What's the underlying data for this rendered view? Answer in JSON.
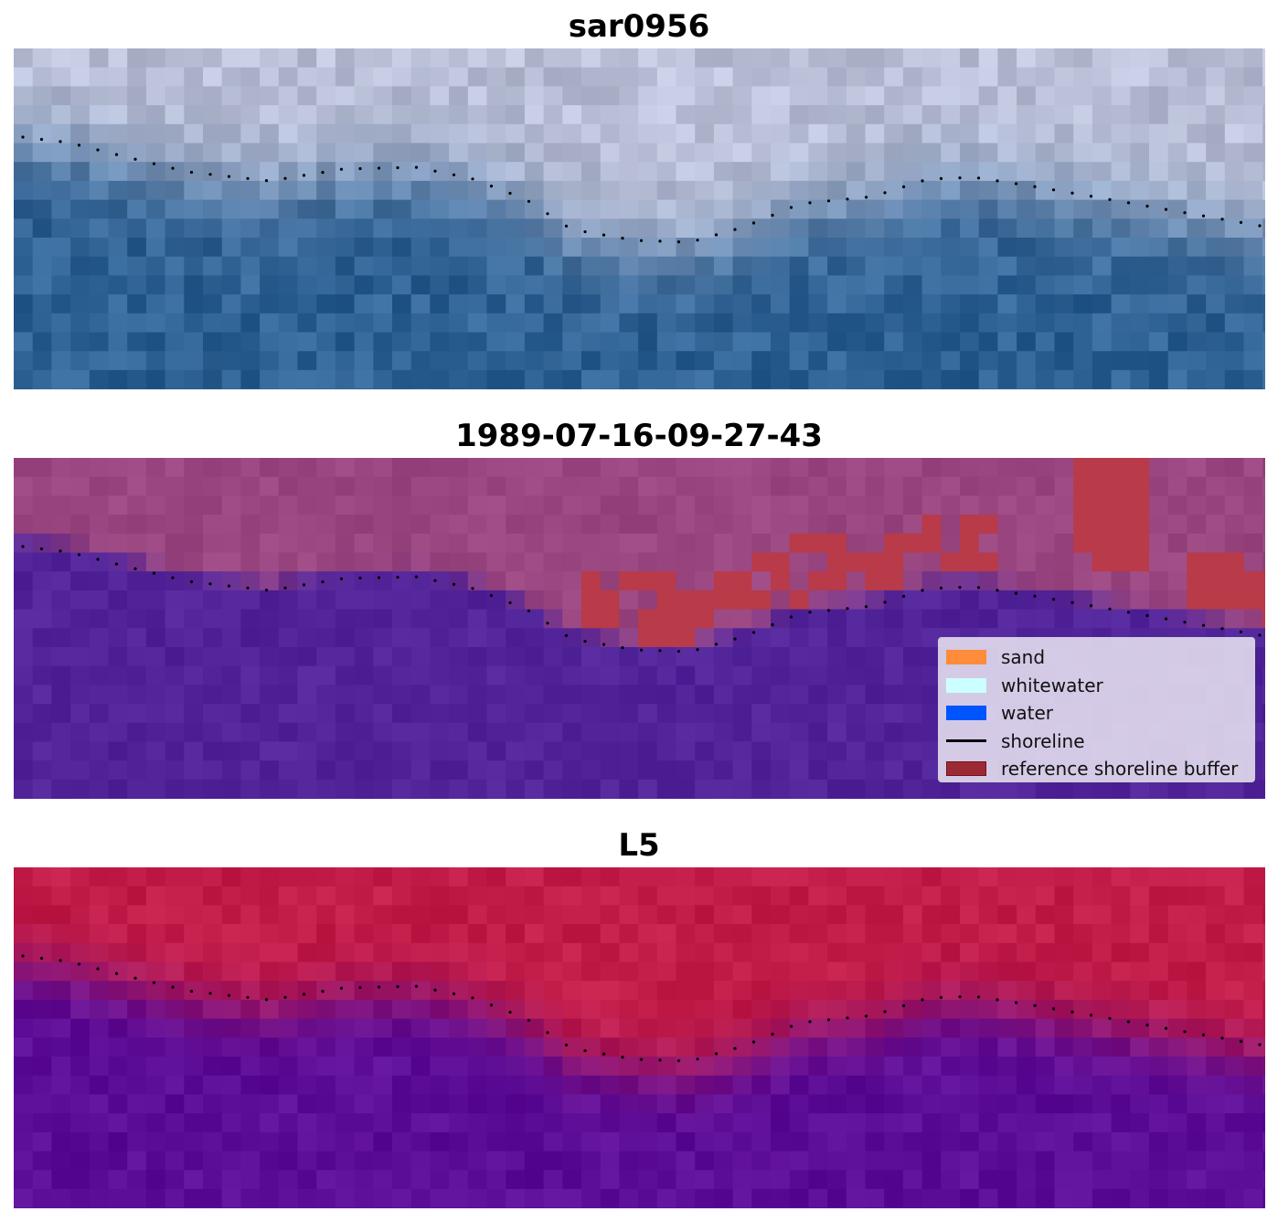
{
  "panels": [
    {
      "title": "sar0956"
    },
    {
      "title": "1989-07-16-09-27-43"
    },
    {
      "title": "L5"
    }
  ],
  "legend": {
    "items": [
      {
        "label": "sand",
        "color": "#ff8c3a",
        "kind": "patch"
      },
      {
        "label": "whitewater",
        "color": "#ccffff",
        "kind": "patch"
      },
      {
        "label": "water",
        "color": "#0055ff",
        "kind": "patch"
      },
      {
        "label": "shoreline",
        "color": "#000000",
        "kind": "line"
      },
      {
        "label": "reference shoreline buffer",
        "color": "#9b2a34",
        "kind": "patch"
      }
    ]
  },
  "colors": {
    "panel1_land": "#b9bfd6",
    "panel1_water": "#2f6294",
    "panel2_land": "#9a4680",
    "panel2_water": "#52249a",
    "panel2_buffer": "#b93a48",
    "panel3_land": "#c21c48",
    "panel3_water": "#5c0d98",
    "shoreline_dots": "#000000"
  }
}
